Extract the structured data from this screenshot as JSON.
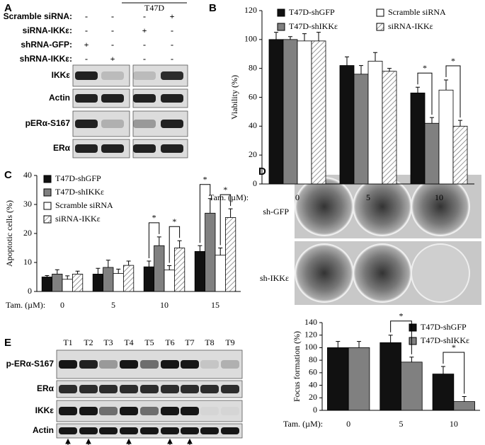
{
  "panel_letters": [
    "A",
    "B",
    "C",
    "D",
    "E"
  ],
  "panel_A": {
    "group_label": "T47D",
    "conditions": [
      {
        "label": "Scramble siRNA:",
        "signs": [
          "-",
          "-",
          "-",
          "+"
        ]
      },
      {
        "label": "siRNA-IKKε:",
        "signs": [
          "-",
          "-",
          "+",
          "-"
        ]
      },
      {
        "label": "shRNA-GFP:",
        "signs": [
          "+",
          "-",
          "-",
          "-"
        ]
      },
      {
        "label": "shRNA-IKKε:",
        "signs": [
          "-",
          "+",
          "-",
          "-"
        ]
      }
    ],
    "blots": [
      "IKKε",
      "Actin",
      "pERα-S167",
      "ERα"
    ]
  },
  "panel_D_images": {
    "xlabel": "Tam. (µM)",
    "columns": [
      "0",
      "5",
      "10"
    ],
    "rows": [
      "sh-GFP",
      "sh-IKKε"
    ]
  },
  "panel_E": {
    "lanes": [
      "T1",
      "T2",
      "T3",
      "T4",
      "T5",
      "T6",
      "T7",
      "T8",
      "T9"
    ],
    "blots": [
      "p-ERα-S167",
      "ERα",
      "IKKε",
      "Actin"
    ]
  },
  "chart_data": [
    {
      "type": "bar",
      "ylabel": "Viability (%)",
      "xlabel": "Tam. (µM):",
      "categories": [
        "0",
        "5",
        "10"
      ],
      "ylim": [
        0,
        120
      ],
      "yticks": [
        0,
        20,
        40,
        60,
        80,
        100,
        120
      ],
      "series": [
        {
          "name": "T47D-shGFP",
          "color": "#111111",
          "values": [
            100,
            82,
            63
          ],
          "errors": [
            5,
            6,
            4
          ]
        },
        {
          "name": "T47D-shIKKε",
          "color": "#808080",
          "values": [
            100,
            76,
            42
          ],
          "errors": [
            2,
            6,
            4
          ]
        },
        {
          "name": "Scramble siRNA",
          "color": "#ffffff",
          "values": [
            99,
            85,
            65
          ],
          "errors": [
            5,
            6,
            7
          ]
        },
        {
          "name": "siRNA-IKKε",
          "color": "#ffffff",
          "hatch": true,
          "values": [
            99,
            78,
            40
          ],
          "errors": [
            6,
            2,
            4
          ]
        }
      ],
      "annotations": [
        "*",
        "*"
      ]
    },
    {
      "type": "bar",
      "ylabel": "Apoptotic cells (%)",
      "xlabel": "Tam. (µM):",
      "categories": [
        "0",
        "5",
        "10",
        "15"
      ],
      "ylim": [
        0,
        40
      ],
      "yticks": [
        0,
        10,
        20,
        30,
        40
      ],
      "series": [
        {
          "name": "T47D-shGFP",
          "color": "#111111",
          "values": [
            5,
            6,
            8.5,
            13.8
          ],
          "errors": [
            0.5,
            2,
            2,
            2
          ]
        },
        {
          "name": "T47D-shIKKε",
          "color": "#808080",
          "values": [
            6,
            8.3,
            15.8,
            27
          ],
          "errors": [
            1.5,
            2.5,
            3,
            5
          ]
        },
        {
          "name": "Scramble siRNA",
          "color": "#ffffff",
          "values": [
            4.2,
            6.2,
            7.4,
            12.5
          ],
          "errors": [
            1.2,
            1.5,
            1.5,
            2.5
          ]
        },
        {
          "name": "siRNA-IKKε",
          "color": "#ffffff",
          "hatch": true,
          "values": [
            6,
            9,
            15,
            25.5
          ],
          "errors": [
            1,
            1.5,
            2.5,
            3
          ]
        }
      ],
      "annotations": [
        "*",
        "*",
        "*",
        "*"
      ]
    },
    {
      "type": "bar",
      "ylabel": "Focus  formation (%)",
      "xlabel": "Tam. (µM):",
      "categories": [
        "0",
        "5",
        "10"
      ],
      "ylim": [
        0,
        140
      ],
      "yticks": [
        0,
        20,
        40,
        60,
        80,
        100,
        120,
        140
      ],
      "series": [
        {
          "name": "T47D-shGFP",
          "color": "#111111",
          "values": [
            100,
            108,
            58
          ],
          "errors": [
            10,
            12,
            12
          ]
        },
        {
          "name": "T47D-shIKKε",
          "color": "#808080",
          "values": [
            100,
            77,
            14
          ],
          "errors": [
            10,
            8,
            8
          ]
        }
      ],
      "annotations": [
        "*",
        "*"
      ]
    }
  ]
}
